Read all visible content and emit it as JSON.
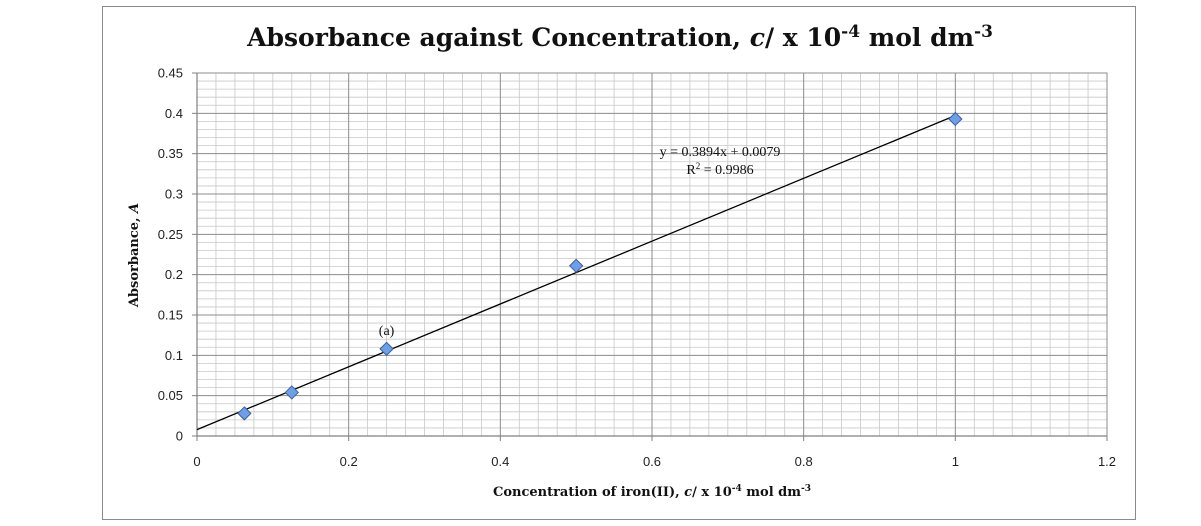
{
  "chart_data": {
    "type": "scatter",
    "title": {
      "main": "Absorbance against Concentration, ",
      "var": "c",
      "rest": "/ x 10",
      "exp": "-4",
      "unit": " mol dm",
      "unit_exp": "-3"
    },
    "xlabel": {
      "main": "Concentration of iron(II), ",
      "var": "c",
      "rest": "/ x 10",
      "exp": "-4",
      "unit": " mol dm",
      "unit_exp": "-3"
    },
    "ylabel": {
      "main": "Absorbance, ",
      "var": "A"
    },
    "xlim": [
      0,
      1.2
    ],
    "ylim": [
      0,
      0.45
    ],
    "x_ticks": [
      "0",
      "0.2",
      "0.4",
      "0.6",
      "0.8",
      "1",
      "1.2"
    ],
    "x_tick_values": [
      0,
      0.2,
      0.4,
      0.6,
      0.8,
      1.0,
      1.2
    ],
    "y_ticks": [
      "0",
      "0.05",
      "0.1",
      "0.15",
      "0.2",
      "0.25",
      "0.3",
      "0.35",
      "0.4",
      "0.45"
    ],
    "y_tick_values": [
      0,
      0.05,
      0.1,
      0.15,
      0.2,
      0.25,
      0.3,
      0.35,
      0.4,
      0.45
    ],
    "x_major_step": 0.2,
    "x_minor_step": 0.025,
    "y_major_step": 0.05,
    "y_minor_step": 0.01,
    "series": [
      {
        "name": "Absorbance",
        "x": [
          0.0625,
          0.125,
          0.25,
          0.5,
          1.0
        ],
        "y": [
          0.028,
          0.054,
          0.108,
          0.211,
          0.393
        ],
        "marker_color": "#6d9eeb",
        "marker_edge": "#3c5f99"
      }
    ],
    "trendline": {
      "type": "linear",
      "slope": 0.3894,
      "intercept": 0.0079,
      "equation": "y = 0.3894x + 0.0079",
      "r2_prefix": "R",
      "r2_exp": "2",
      "r2_value": " = 0.9986",
      "color": "#000000"
    },
    "annotations": [
      {
        "text": "(a)",
        "x": 0.25,
        "y": 0.108
      }
    ],
    "grid": true,
    "major_grid_color": "#8c8c8c",
    "minor_grid_color": "#c8c8c8"
  }
}
